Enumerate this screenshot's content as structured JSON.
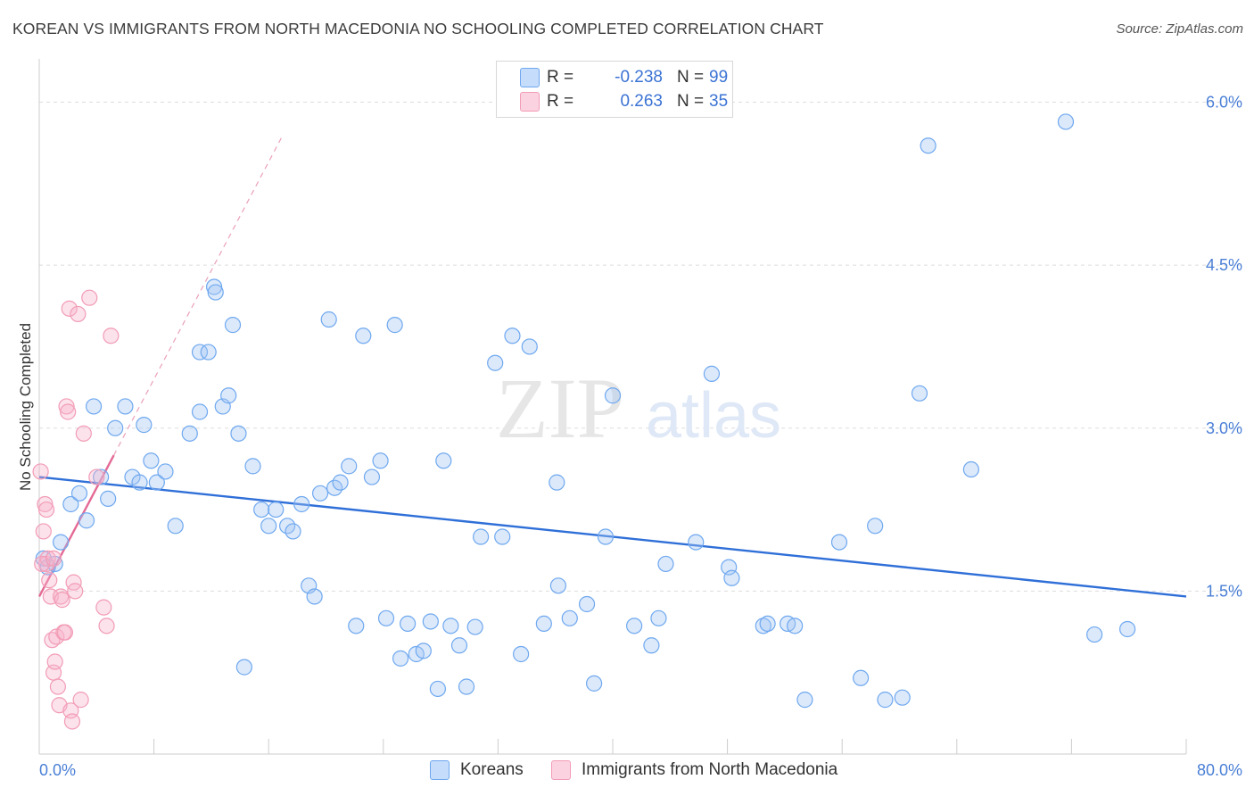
{
  "title": "KOREAN VS IMMIGRANTS FROM NORTH MACEDONIA NO SCHOOLING COMPLETED CORRELATION CHART",
  "source": "Source: ZipAtlas.com",
  "watermark": {
    "zip": "ZIP",
    "atlas": "atlas"
  },
  "legend": {
    "rows": [
      {
        "r_label": "R =",
        "r_value": "-0.238",
        "n_label": "N =",
        "n_value": "99",
        "color": "#6fa8ef"
      },
      {
        "r_label": "R =",
        "r_value": "0.263",
        "n_label": "N =",
        "n_value": "35",
        "color": "#f29cb6"
      }
    ]
  },
  "bottom_legend": [
    {
      "label": "Koreans",
      "color": "#6fa8ef"
    },
    {
      "label": "Immigrants from North Macedonia",
      "color": "#f29cb6"
    }
  ],
  "chart_data": {
    "type": "scatter",
    "title": "KOREAN VS IMMIGRANTS FROM NORTH MACEDONIA NO SCHOOLING COMPLETED CORRELATION CHART",
    "xlabel": "",
    "ylabel": "No Schooling Completed",
    "xlim": [
      0,
      80
    ],
    "ylim": [
      0,
      6.3
    ],
    "x_tick_labels": [
      "0.0%",
      "80.0%"
    ],
    "y_ticks": [
      1.5,
      3.0,
      4.5,
      6.0
    ],
    "y_tick_labels": [
      "1.5%",
      "3.0%",
      "4.5%",
      "6.0%"
    ],
    "grid": true,
    "legend_position": "top-center",
    "series": [
      {
        "name": "Koreans",
        "color": "#6fa8ef",
        "trend": {
          "x": [
            0,
            80
          ],
          "y": [
            2.55,
            1.45
          ]
        },
        "points": [
          [
            0.3,
            1.8
          ],
          [
            0.6,
            1.72
          ],
          [
            1.5,
            1.95
          ],
          [
            2.2,
            2.3
          ],
          [
            2.8,
            2.4
          ],
          [
            3.3,
            2.15
          ],
          [
            3.8,
            3.2
          ],
          [
            4.3,
            2.55
          ],
          [
            4.8,
            2.35
          ],
          [
            5.3,
            3.0
          ],
          [
            6.0,
            3.2
          ],
          [
            6.5,
            2.55
          ],
          [
            7.0,
            2.5
          ],
          [
            7.3,
            3.03
          ],
          [
            7.8,
            2.7
          ],
          [
            8.2,
            2.5
          ],
          [
            8.8,
            2.6
          ],
          [
            9.5,
            2.1
          ],
          [
            10.5,
            2.95
          ],
          [
            11.2,
            3.15
          ],
          [
            11.2,
            3.7
          ],
          [
            11.8,
            3.7
          ],
          [
            12.2,
            4.3
          ],
          [
            12.3,
            4.25
          ],
          [
            12.8,
            3.2
          ],
          [
            13.2,
            3.3
          ],
          [
            13.5,
            3.95
          ],
          [
            13.9,
            2.95
          ],
          [
            14.3,
            0.8
          ],
          [
            14.9,
            2.65
          ],
          [
            15.5,
            2.25
          ],
          [
            16.0,
            2.1
          ],
          [
            16.5,
            2.25
          ],
          [
            17.3,
            2.1
          ],
          [
            17.7,
            2.05
          ],
          [
            18.3,
            2.3
          ],
          [
            18.8,
            1.55
          ],
          [
            19.2,
            1.45
          ],
          [
            19.6,
            2.4
          ],
          [
            20.2,
            4.0
          ],
          [
            20.6,
            2.45
          ],
          [
            21.0,
            2.5
          ],
          [
            21.6,
            2.65
          ],
          [
            22.1,
            1.18
          ],
          [
            22.6,
            3.85
          ],
          [
            23.2,
            2.55
          ],
          [
            23.8,
            2.7
          ],
          [
            24.2,
            1.25
          ],
          [
            24.8,
            3.95
          ],
          [
            25.2,
            0.88
          ],
          [
            25.7,
            1.2
          ],
          [
            26.3,
            0.92
          ],
          [
            26.8,
            0.95
          ],
          [
            27.3,
            1.22
          ],
          [
            27.8,
            0.6
          ],
          [
            28.2,
            2.7
          ],
          [
            28.7,
            1.18
          ],
          [
            29.3,
            1.0
          ],
          [
            29.8,
            0.62
          ],
          [
            30.4,
            1.17
          ],
          [
            30.8,
            2.0
          ],
          [
            31.8,
            3.6
          ],
          [
            32.3,
            2.0
          ],
          [
            33.0,
            3.85
          ],
          [
            33.6,
            0.92
          ],
          [
            34.2,
            3.75
          ],
          [
            35.2,
            1.2
          ],
          [
            36.1,
            2.5
          ],
          [
            36.2,
            1.55
          ],
          [
            37.0,
            1.25
          ],
          [
            38.2,
            1.38
          ],
          [
            38.7,
            0.65
          ],
          [
            39.5,
            2.0
          ],
          [
            40.0,
            3.3
          ],
          [
            41.5,
            1.18
          ],
          [
            42.7,
            1.0
          ],
          [
            43.2,
            1.25
          ],
          [
            43.7,
            1.75
          ],
          [
            45.8,
            1.95
          ],
          [
            46.9,
            3.5
          ],
          [
            48.1,
            1.72
          ],
          [
            48.3,
            1.62
          ],
          [
            50.5,
            1.18
          ],
          [
            50.8,
            1.2
          ],
          [
            52.2,
            1.2
          ],
          [
            52.7,
            1.18
          ],
          [
            53.4,
            0.5
          ],
          [
            55.8,
            1.95
          ],
          [
            57.3,
            0.7
          ],
          [
            58.3,
            2.1
          ],
          [
            59.0,
            0.5
          ],
          [
            60.2,
            0.52
          ],
          [
            61.4,
            3.32
          ],
          [
            62.0,
            5.6
          ],
          [
            65.0,
            2.62
          ],
          [
            71.6,
            5.82
          ],
          [
            73.6,
            1.1
          ],
          [
            75.9,
            1.15
          ],
          [
            1.1,
            1.75
          ]
        ]
      },
      {
        "name": "Immigrants from North Macedonia",
        "color": "#f29cb6",
        "trend": {
          "x": [
            0,
            5.2
          ],
          "y": [
            1.45,
            2.75
          ]
        },
        "trend_extension": {
          "x": [
            5.2,
            17.0
          ],
          "y": [
            2.75,
            5.7
          ]
        },
        "points": [
          [
            0.1,
            2.6
          ],
          [
            0.3,
            2.05
          ],
          [
            0.4,
            2.3
          ],
          [
            0.5,
            2.25
          ],
          [
            0.5,
            1.75
          ],
          [
            0.6,
            1.8
          ],
          [
            0.7,
            1.6
          ],
          [
            0.8,
            1.45
          ],
          [
            0.9,
            1.05
          ],
          [
            1.0,
            0.75
          ],
          [
            1.1,
            0.85
          ],
          [
            1.2,
            1.08
          ],
          [
            1.3,
            0.62
          ],
          [
            1.4,
            0.45
          ],
          [
            1.5,
            1.45
          ],
          [
            1.6,
            1.42
          ],
          [
            1.7,
            1.12
          ],
          [
            1.8,
            1.12
          ],
          [
            1.9,
            3.2
          ],
          [
            2.0,
            3.15
          ],
          [
            2.1,
            4.1
          ],
          [
            2.2,
            0.4
          ],
          [
            2.3,
            0.3
          ],
          [
            2.4,
            1.58
          ],
          [
            2.5,
            1.5
          ],
          [
            2.7,
            4.05
          ],
          [
            2.9,
            0.5
          ],
          [
            3.1,
            2.95
          ],
          [
            3.5,
            4.2
          ],
          [
            4.0,
            2.55
          ],
          [
            4.5,
            1.35
          ],
          [
            4.7,
            1.18
          ],
          [
            5.0,
            3.85
          ],
          [
            0.2,
            1.75
          ],
          [
            1.0,
            1.8
          ]
        ]
      }
    ]
  }
}
